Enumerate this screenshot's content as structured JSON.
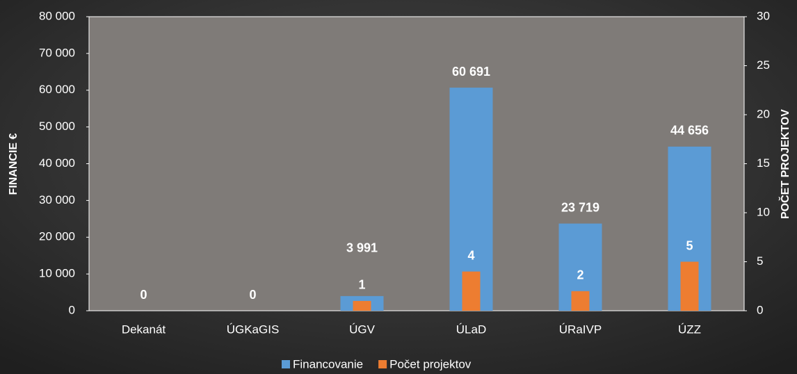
{
  "chart_data": {
    "type": "bar",
    "categories": [
      "Dekanát",
      "ÚGKaGIS",
      "ÚGV",
      "ÚLaD",
      "ÚRaIVP",
      "ÚZZ"
    ],
    "series": [
      {
        "name": "Financovanie",
        "color": "#5b9bd5",
        "values": [
          0,
          0,
          3991,
          60691,
          23719,
          44656
        ],
        "value_labels": [
          "0",
          "0",
          "3 991",
          "60 691",
          "23 719",
          "44 656"
        ]
      },
      {
        "name": "Počet projektov",
        "color": "#ed7d31",
        "axis": "y2",
        "values": [
          0,
          0,
          1,
          4,
          2,
          5
        ],
        "value_labels": [
          null,
          null,
          "1",
          "4",
          "2",
          "5"
        ]
      }
    ],
    "ylabel": "FINANCIE €",
    "y2label": "POČET PROJEKTOV",
    "ylim": [
      0,
      80000
    ],
    "yticks": [
      0,
      {
        "value": 10000,
        "label": "10 000"
      },
      {
        "value": 20000,
        "label": "20 000"
      },
      {
        "value": 30000,
        "label": "30 000"
      },
      {
        "value": 40000,
        "label": "40 000"
      },
      {
        "value": 50000,
        "label": "50 000"
      },
      {
        "value": 60000,
        "label": "60 000"
      },
      {
        "value": 70000,
        "label": "70 000"
      },
      {
        "value": 80000,
        "label": "80 000"
      }
    ],
    "y2lim": [
      0,
      30
    ],
    "y2ticks": [
      0,
      5,
      10,
      15,
      20,
      25,
      30
    ],
    "legend": "bottom"
  }
}
